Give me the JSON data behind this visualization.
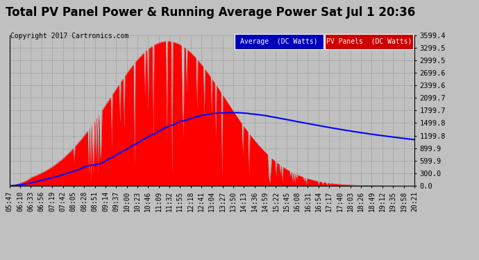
{
  "title": "Total PV Panel Power & Running Average Power Sat Jul 1 20:36",
  "copyright": "Copyright 2017 Cartronics.com",
  "bg_color": "#c0c0c0",
  "plot_bg_color": "#c0c0c0",
  "yticks": [
    0.0,
    300.0,
    599.9,
    899.9,
    1199.8,
    1499.8,
    1799.7,
    2099.7,
    2399.6,
    2699.6,
    2999.5,
    3299.5,
    3599.4
  ],
  "ylim": [
    0.0,
    3599.4
  ],
  "x_labels": [
    "05:47",
    "06:10",
    "06:33",
    "06:56",
    "07:19",
    "07:42",
    "08:05",
    "08:28",
    "08:51",
    "09:14",
    "09:37",
    "10:00",
    "10:23",
    "10:46",
    "11:09",
    "11:32",
    "11:55",
    "12:18",
    "12:41",
    "13:04",
    "13:27",
    "13:50",
    "14:13",
    "14:36",
    "14:59",
    "15:22",
    "15:45",
    "16:08",
    "16:31",
    "16:54",
    "17:17",
    "17:40",
    "18:03",
    "18:26",
    "18:49",
    "19:12",
    "19:35",
    "19:58",
    "20:21"
  ],
  "line_color": "#0000ff",
  "fill_color": "#ff0000",
  "grid_color": "#888888",
  "title_fontsize": 12,
  "copyright_fontsize": 7,
  "tick_fontsize": 7,
  "ytick_fontsize": 7.5
}
